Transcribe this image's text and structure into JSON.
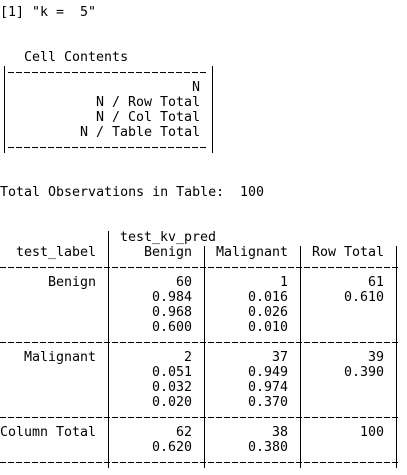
{
  "console": {
    "line1": "[1] \"k =  5\"",
    "cell_contents": {
      "title": "Cell Contents",
      "lines": [
        "N",
        "N / Row Total",
        "N / Col Total",
        "N / Table Total"
      ]
    },
    "total_observations": {
      "label": "Total Observations in Table:",
      "value": 100
    },
    "table": {
      "column_variable": "test_kv_pred",
      "row_variable": "test_label",
      "columns": [
        "Benign",
        "Malignant",
        "Row Total"
      ],
      "rows": [
        {
          "label": "Benign",
          "cells": [
            [
              60,
              "0.984",
              "0.968",
              "0.600"
            ],
            [
              1,
              "0.016",
              "0.026",
              "0.010"
            ],
            [
              61,
              "0.610"
            ]
          ]
        },
        {
          "label": "Malignant",
          "cells": [
            [
              2,
              "0.051",
              "0.032",
              "0.020"
            ],
            [
              37,
              "0.949",
              "0.974",
              "0.370"
            ],
            [
              39,
              "0.390"
            ]
          ]
        }
      ],
      "column_total": {
        "label": "Column Total",
        "cells": [
          [
            62,
            "0.620"
          ],
          [
            38,
            "0.380"
          ],
          [
            100
          ]
        ]
      }
    }
  }
}
